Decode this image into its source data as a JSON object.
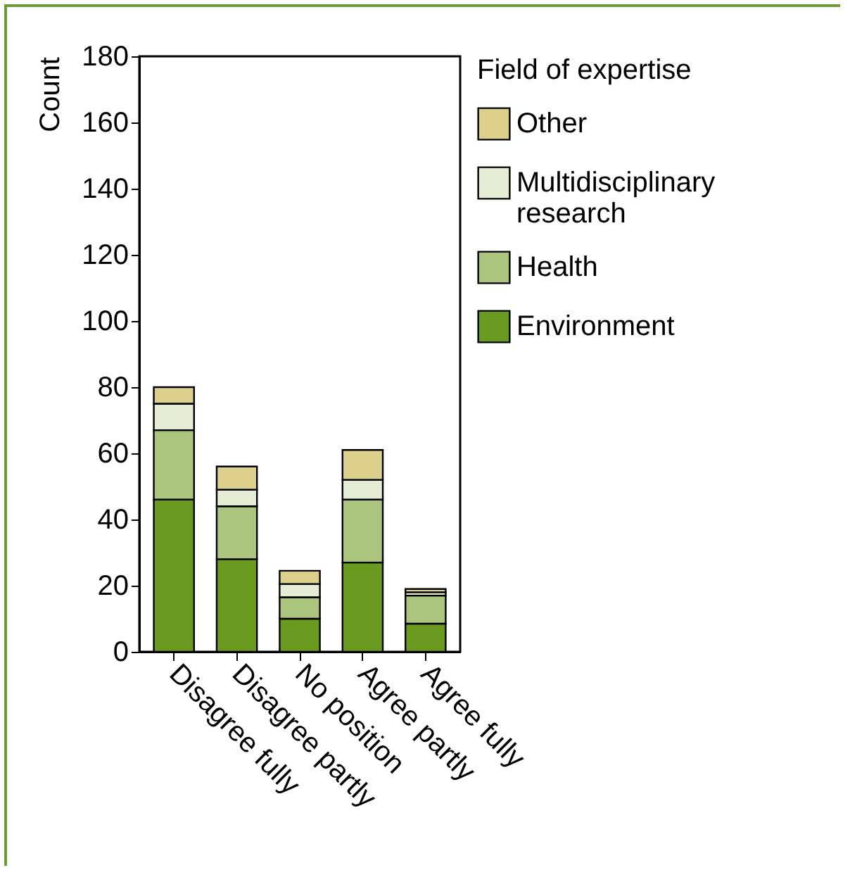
{
  "chart_data": {
    "type": "bar",
    "stacked": true,
    "ylabel": "Count",
    "legend_title": "Field of expertise",
    "legend": "right",
    "grid": false,
    "categories": [
      "Disagree fully",
      "Disagree partly",
      "No position",
      "Agree partly",
      "Agree fully"
    ],
    "ylim": [
      0,
      180
    ],
    "yticks": [
      0,
      20,
      40,
      60,
      80,
      100,
      120,
      140,
      160,
      180
    ],
    "series": [
      {
        "name": "Environment",
        "color": "#6a9a1f",
        "values": [
          46,
          28,
          10,
          27,
          8.5
        ]
      },
      {
        "name": "Health",
        "color": "#abc47e",
        "values": [
          21,
          16,
          6.5,
          19,
          8.5
        ]
      },
      {
        "name": "Multidisciplinary research",
        "color": "#e5edd5",
        "values": [
          8,
          5,
          4,
          6,
          1
        ]
      },
      {
        "name": "Other",
        "color": "#dcd08c",
        "values": [
          5,
          7,
          4,
          9,
          1
        ]
      }
    ]
  }
}
